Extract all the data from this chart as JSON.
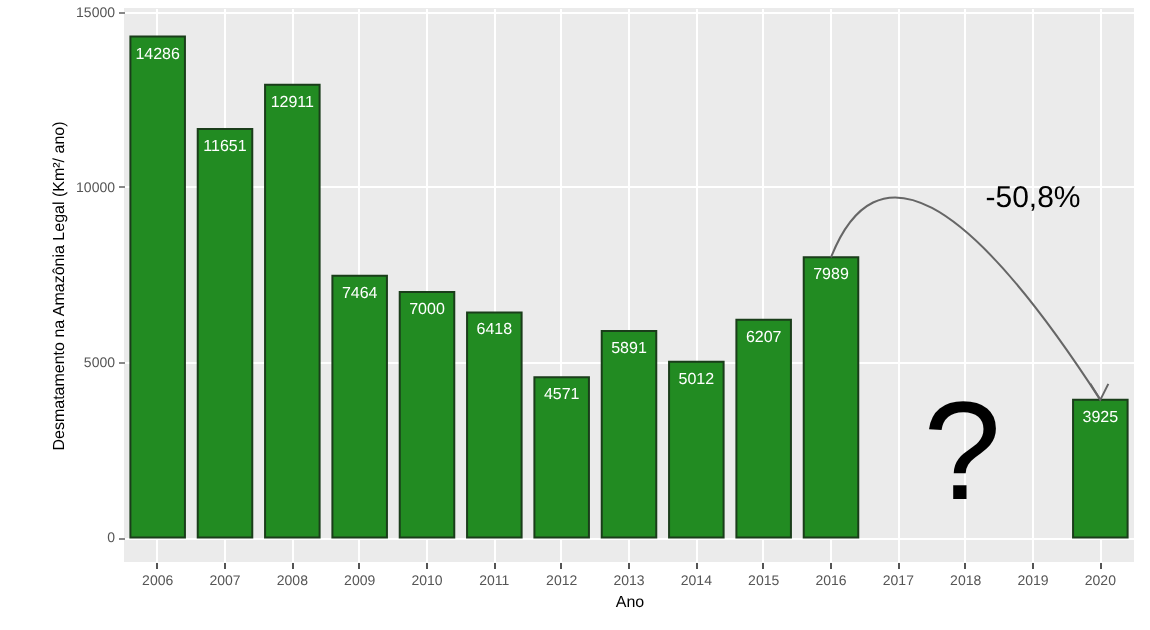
{
  "chart_data": {
    "type": "bar",
    "categories": [
      "2006",
      "2007",
      "2008",
      "2009",
      "2010",
      "2011",
      "2012",
      "2013",
      "2014",
      "2015",
      "2016",
      "2017",
      "2018",
      "2019",
      "2020"
    ],
    "values": [
      14286,
      11651,
      12911,
      7464,
      7000,
      6418,
      4571,
      5891,
      5012,
      6207,
      7989,
      null,
      null,
      null,
      3925
    ],
    "color": "#228b22",
    "xlabel": "Ano",
    "ylabel": "Desmatamento na Amazônia Legal (Km²/ ano)",
    "ylim": [
      -700,
      15100
    ],
    "yticks": [
      0,
      5000,
      10000,
      15000
    ],
    "grid": true,
    "data_labels": true,
    "annotations": [
      "-50,8%",
      "?"
    ]
  }
}
